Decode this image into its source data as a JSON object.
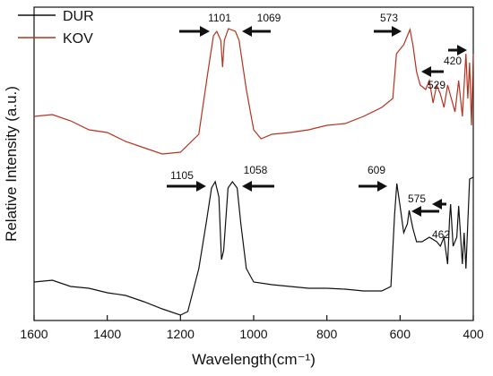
{
  "chart_data": {
    "type": "line",
    "xlabel": "Wavelength(cm⁻¹)",
    "ylabel": "Relative Intensity (a.u.)",
    "xlim": [
      1600,
      400
    ],
    "xticks": [
      1600,
      1400,
      1200,
      1000,
      800,
      600,
      400
    ],
    "ylim": [
      0,
      350
    ],
    "legend": "upper left",
    "series": [
      {
        "name": "DUR",
        "color": "#111111",
        "x": [
          1600,
          1550,
          1500,
          1450,
          1400,
          1350,
          1300,
          1250,
          1200,
          1180,
          1150,
          1130,
          1115,
          1105,
          1095,
          1088,
          1082,
          1070,
          1058,
          1045,
          1035,
          1020,
          1000,
          950,
          900,
          850,
          800,
          750,
          700,
          650,
          625,
          615,
          609,
          600,
          590,
          580,
          575,
          565,
          555,
          540,
          520,
          500,
          490,
          480,
          470,
          465,
          462,
          455,
          445,
          440,
          430,
          425,
          420,
          410,
          400
        ],
        "values": [
          43,
          45,
          38,
          36,
          31,
          28,
          21,
          13,
          6,
          10,
          58,
          108,
          148,
          155,
          138,
          68,
          78,
          148,
          155,
          148,
          108,
          58,
          43,
          40,
          38,
          36,
          36,
          35,
          33,
          33,
          38,
          118,
          153,
          128,
          98,
          108,
          123,
          103,
          88,
          88,
          93,
          88,
          83,
          93,
          63,
          113,
          130,
          83,
          93,
          128,
          63,
          98,
          58,
          158,
          160
        ]
      },
      {
        "name": "KOV",
        "color": "#b5331f",
        "x": [
          1600,
          1550,
          1500,
          1450,
          1400,
          1350,
          1300,
          1250,
          1200,
          1150,
          1125,
          1110,
          1101,
          1090,
          1085,
          1080,
          1069,
          1050,
          1040,
          1020,
          1000,
          980,
          950,
          900,
          850,
          800,
          750,
          700,
          650,
          620,
          610,
          600,
          590,
          580,
          573,
          565,
          555,
          545,
          530,
          520,
          510,
          500,
          490,
          480,
          470,
          460,
          450,
          440,
          430,
          420,
          415,
          410,
          405,
          400
        ],
        "values": [
          228,
          230,
          223,
          213,
          210,
          200,
          193,
          186,
          188,
          208,
          278,
          318,
          323,
          313,
          283,
          313,
          326,
          323,
          313,
          258,
          213,
          203,
          208,
          210,
          213,
          218,
          220,
          228,
          238,
          248,
          298,
          303,
          308,
          318,
          325,
          308,
          278,
          263,
          258,
          268,
          243,
          263,
          253,
          238,
          263,
          248,
          233,
          268,
          228,
          298,
          248,
          288,
          218,
          298
        ]
      }
    ],
    "annotations": [
      "1101",
      "1069",
      "573",
      "529",
      "420",
      "1105",
      "1058",
      "609",
      "575",
      "462"
    ]
  }
}
